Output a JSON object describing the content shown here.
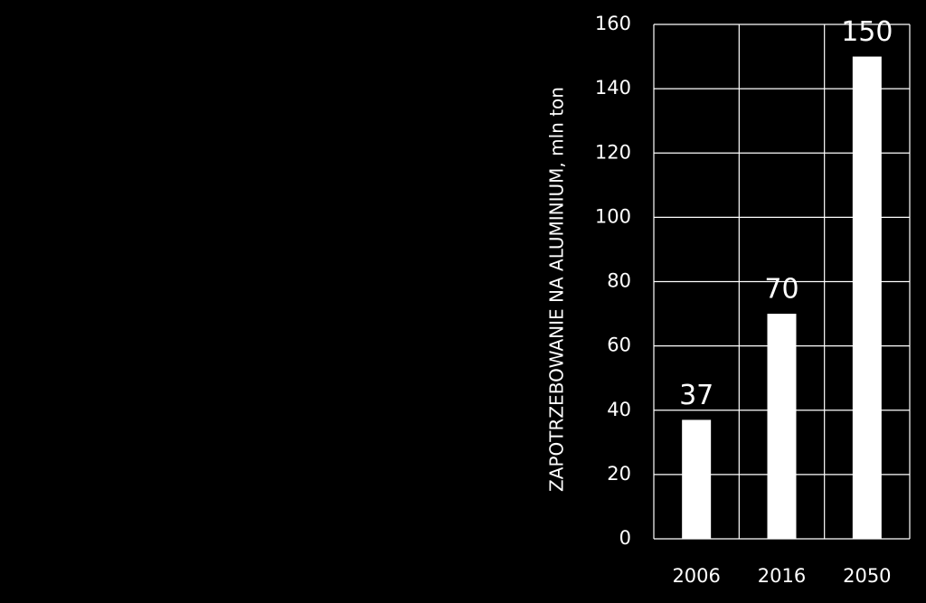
{
  "chart_data": {
    "type": "bar",
    "y_label": "ZAPOTRZEBOWANIE NA ALUMINIUM, mln ton",
    "categories": [
      "2006",
      "2016",
      "2050"
    ],
    "values": [
      37,
      70,
      150
    ],
    "color": "#ffffff",
    "ylim": [
      0,
      160
    ],
    "yticks": [
      0,
      20,
      40,
      60,
      80,
      100,
      120,
      140,
      160
    ],
    "grid": true,
    "data_labels": true
  }
}
